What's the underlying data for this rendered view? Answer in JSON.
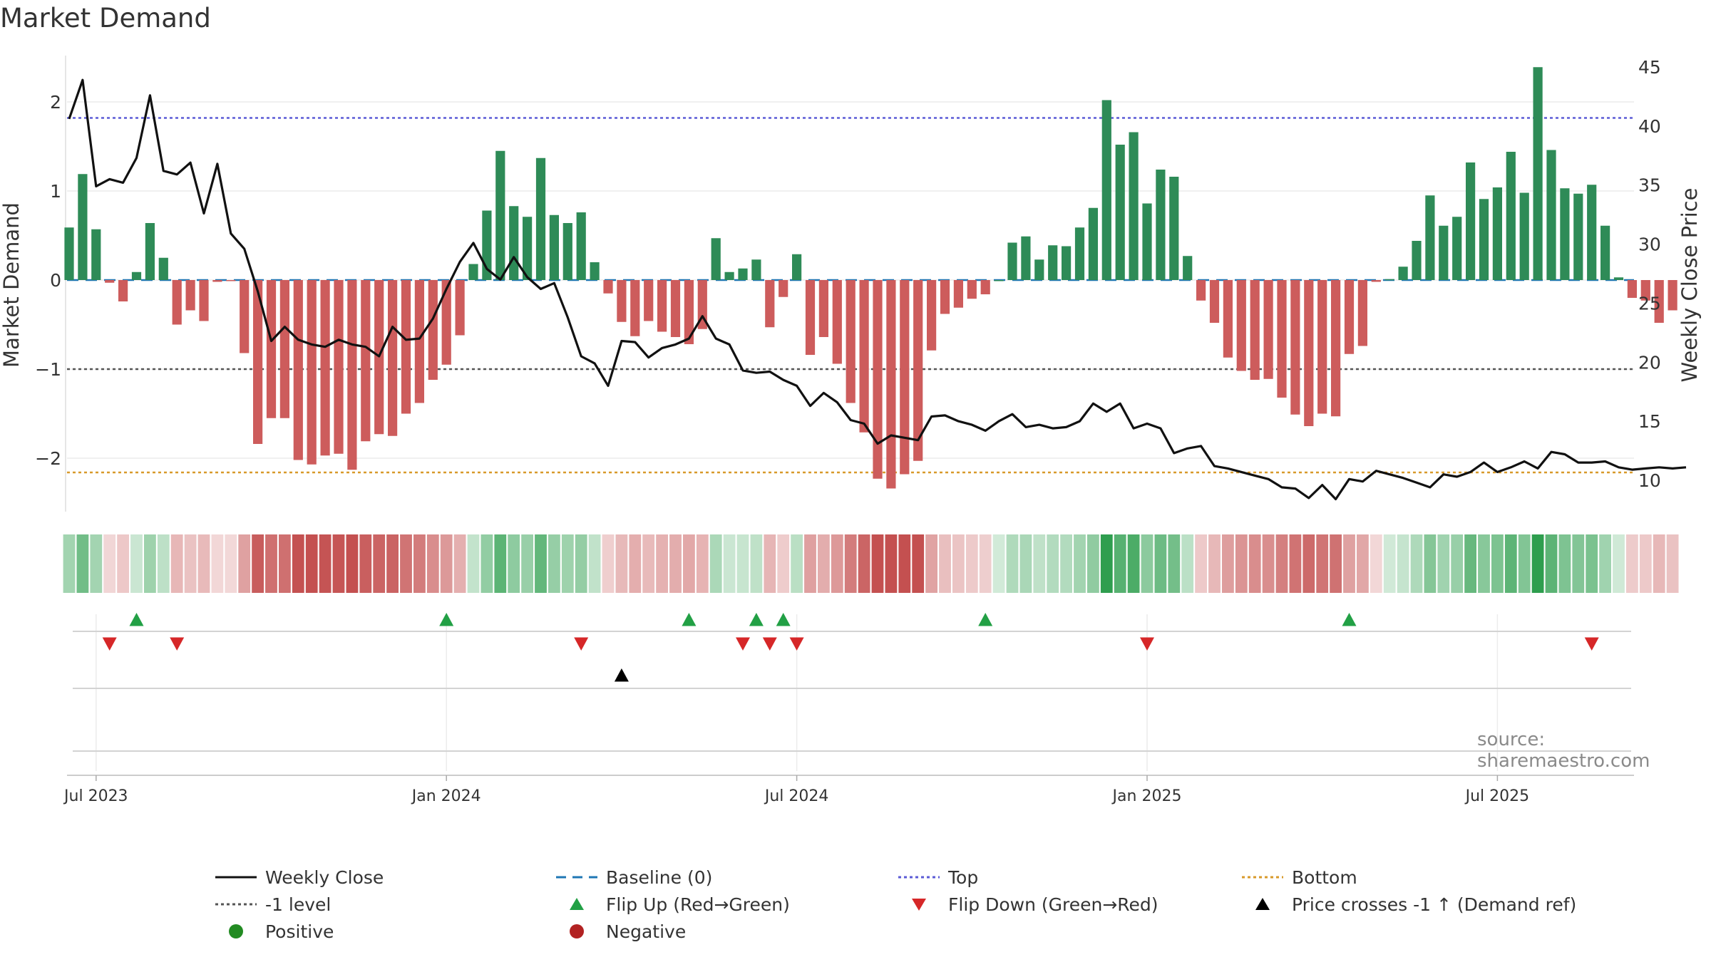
{
  "title": "Market Demand",
  "source": "source: sharemaestro.com",
  "colors": {
    "positive": "#2e8b57",
    "negative": "#cd5c5c",
    "line": "#111111",
    "baseline": "#1f77b4",
    "top": "#5b5bd6",
    "minus1": "#555555",
    "bottom": "#d89a2b",
    "flip_up": "#22a045",
    "flip_down": "#d62728",
    "cross": "#000000",
    "legend_positive": "#228b22",
    "legend_negative": "#b22222"
  },
  "chart_data": {
    "type": "bar",
    "title": "Market Demand",
    "ylabel": "Market Demand",
    "y2label": "Weekly Close Price",
    "ylim": [
      -2.6,
      2.6
    ],
    "y2lim": [
      7.5,
      46.5
    ],
    "yticks": [
      -2,
      -1,
      0,
      1,
      2
    ],
    "y2ticks": [
      10,
      15,
      20,
      25,
      30,
      35,
      40,
      45
    ],
    "x_start_week": 0,
    "x_tick_labels": [
      {
        "week": 2,
        "label": "Jul 2023"
      },
      {
        "week": 28,
        "label": "Jan 2024"
      },
      {
        "week": 54,
        "label": "Jul 2024"
      },
      {
        "week": 80,
        "label": "Jan 2025"
      },
      {
        "week": 106,
        "label": "Jul 2025"
      }
    ],
    "reference_lines": {
      "top": 1.82,
      "baseline": 0,
      "minus1": -1,
      "bottom": -2.16
    },
    "demand": [
      0.59,
      1.19,
      0.57,
      -0.03,
      -0.24,
      0.09,
      0.64,
      0.25,
      -0.5,
      -0.34,
      -0.46,
      -0.02,
      -0.01,
      -0.82,
      -1.84,
      -1.55,
      -1.55,
      -2.02,
      -2.07,
      -1.97,
      -1.95,
      -2.13,
      -1.81,
      -1.73,
      -1.75,
      -1.5,
      -1.38,
      -1.12,
      -0.95,
      -0.62,
      0.18,
      0.78,
      1.45,
      0.83,
      0.71,
      1.37,
      0.73,
      0.64,
      0.76,
      0.2,
      -0.15,
      -0.47,
      -0.63,
      -0.46,
      -0.58,
      -0.64,
      -0.72,
      -0.55,
      0.47,
      0.09,
      0.13,
      0.23,
      -0.53,
      -0.19,
      0.29,
      -0.84,
      -0.64,
      -0.94,
      -1.38,
      -1.71,
      -2.23,
      -2.34,
      -2.18,
      -2.03,
      -0.79,
      -0.38,
      -0.31,
      -0.21,
      -0.16,
      0.0,
      0.42,
      0.49,
      0.23,
      0.39,
      0.38,
      0.59,
      0.81,
      2.02,
      1.52,
      1.66,
      0.86,
      1.24,
      1.16,
      0.27,
      -0.23,
      -0.48,
      -0.87,
      -1.02,
      -1.12,
      -1.11,
      -1.32,
      -1.51,
      -1.64,
      -1.5,
      -1.53,
      -0.83,
      -0.74,
      -0.02,
      0.01,
      0.15,
      0.44,
      0.95,
      0.61,
      0.71,
      1.32,
      0.91,
      1.04,
      1.44,
      0.98,
      2.39,
      1.46,
      1.03,
      0.97,
      1.07,
      0.61,
      0.03,
      -0.2,
      -0.23,
      -0.48,
      -0.34
    ],
    "weekly_close": [
      40.6,
      43.9,
      34.9,
      35.5,
      35.2,
      37.3,
      42.6,
      36.2,
      35.9,
      36.9,
      32.6,
      36.8,
      30.9,
      29.6,
      26.0,
      21.8,
      23.0,
      21.9,
      21.5,
      21.3,
      21.9,
      21.5,
      21.3,
      20.5,
      23.0,
      21.9,
      22.0,
      23.7,
      26.2,
      28.5,
      30.1,
      27.9,
      27.0,
      28.9,
      27.2,
      26.2,
      26.7,
      23.8,
      20.5,
      19.9,
      18.0,
      21.8,
      21.7,
      20.4,
      21.2,
      21.5,
      22.0,
      23.9,
      22.0,
      21.5,
      19.3,
      19.1,
      19.2,
      18.5,
      18.0,
      16.3,
      17.4,
      16.6,
      15.1,
      14.8,
      13.1,
      13.8,
      13.6,
      13.4,
      15.4,
      15.5,
      15.0,
      14.7,
      14.2,
      15.0,
      15.6,
      14.5,
      14.7,
      14.4,
      14.5,
      15.0,
      16.5,
      15.8,
      16.5,
      14.4,
      14.8,
      14.4,
      12.3,
      12.7,
      12.9,
      11.2,
      11.0,
      10.7,
      10.4,
      10.1,
      9.4,
      9.3,
      8.5,
      9.6,
      8.4,
      10.1,
      9.9,
      10.8,
      10.5,
      10.2,
      9.8,
      9.4,
      10.5,
      10.3,
      10.7,
      11.5,
      10.7,
      11.1,
      11.6,
      11.0,
      12.4,
      12.2,
      11.5,
      11.5,
      11.6,
      11.1,
      10.9,
      11.0,
      11.1,
      11.0,
      11.1
    ],
    "flip_up_weeks": [
      5,
      28,
      46,
      51,
      53,
      68,
      95
    ],
    "flip_down_weeks": [
      3,
      8,
      38,
      50,
      52,
      54,
      80,
      113
    ],
    "cross_weeks": [
      41
    ]
  },
  "legend": [
    {
      "key": "weekly_close",
      "label": "Weekly Close",
      "symbol": "line-solid",
      "color": "#111111"
    },
    {
      "key": "baseline",
      "label": "Baseline (0)",
      "symbol": "line-dash",
      "color": "#1f77b4"
    },
    {
      "key": "top",
      "label": "Top",
      "symbol": "line-dot",
      "color": "#5b5bd6"
    },
    {
      "key": "bottom",
      "label": "Bottom",
      "symbol": "line-dot",
      "color": "#d89a2b"
    },
    {
      "key": "minus1",
      "label": "-1 level",
      "symbol": "line-dot",
      "color": "#555555"
    },
    {
      "key": "flip_up",
      "label": "Flip Up (Red→Green)",
      "symbol": "tri-up",
      "color": "#22a045"
    },
    {
      "key": "flip_down",
      "label": "Flip Down (Green→Red)",
      "symbol": "tri-down",
      "color": "#d62728"
    },
    {
      "key": "cross",
      "label": "Price crosses -1 ↑ (Demand ref)",
      "symbol": "tri-up",
      "color": "#000000"
    },
    {
      "key": "positive",
      "label": "Positive",
      "symbol": "dot",
      "color": "#228b22"
    },
    {
      "key": "negative",
      "label": "Negative",
      "symbol": "dot",
      "color": "#b22222"
    }
  ]
}
